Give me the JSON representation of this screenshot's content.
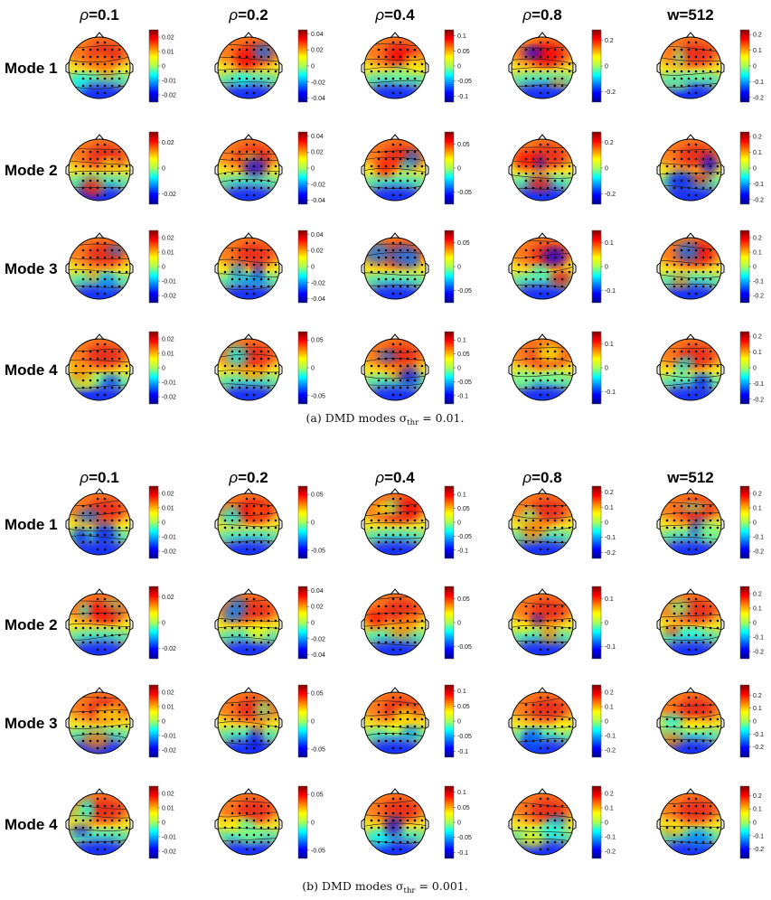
{
  "column_headers": [
    "ρ=0.1",
    "ρ=0.2",
    "ρ=0.4",
    "ρ=0.8",
    "w=512"
  ],
  "row_headers": [
    "Mode 1",
    "Mode 2",
    "Mode 3",
    "Mode 4"
  ],
  "colors": {
    "colormap": "jet",
    "low": "#00008f",
    "mid": "#f2e92a",
    "high": "#800000"
  },
  "chart_data": [
    {
      "type": "heatmap",
      "subfigure_caption": {
        "prefix": "(a) DMD modes σ",
        "subscript": "thr",
        "suffix": " = 0.01."
      },
      "columns": [
        "ρ=0.1",
        "ρ=0.2",
        "ρ=0.4",
        "ρ=0.8",
        "w=512"
      ],
      "rows": [
        "Mode 1",
        "Mode 2",
        "Mode 3",
        "Mode 4"
      ],
      "colorbar_limits": [
        [
          [
            -0.025,
            0.025
          ],
          [
            -0.045,
            0.045
          ],
          [
            -0.12,
            0.12
          ],
          [
            -0.28,
            0.28
          ],
          [
            -0.23,
            0.23
          ]
        ],
        [
          [
            -0.028,
            0.028
          ],
          [
            -0.045,
            0.045
          ],
          [
            -0.075,
            0.075
          ],
          [
            -0.28,
            0.28
          ],
          [
            -0.23,
            0.23
          ]
        ],
        [
          [
            -0.025,
            0.025
          ],
          [
            -0.045,
            0.045
          ],
          [
            -0.075,
            0.075
          ],
          [
            -0.15,
            0.15
          ],
          [
            -0.25,
            0.25
          ]
        ],
        [
          [
            -0.025,
            0.025
          ],
          [
            -0.065,
            0.065
          ],
          [
            -0.13,
            0.13
          ],
          [
            -0.15,
            0.15
          ],
          [
            -0.23,
            0.23
          ]
        ]
      ],
      "colorbar_ticks": [
        [
          [
            "0.02",
            "0.01",
            "0",
            "-0.01",
            "-0.02"
          ],
          [
            "0.04",
            "0.02",
            "0",
            "-0.02",
            "-0.04"
          ],
          [
            "0.1",
            "0.05",
            "0",
            "-0.05",
            "-0.1"
          ],
          [
            "0.2",
            "0",
            "-0.2"
          ],
          [
            "0.2",
            "0.1",
            "0",
            "-0.1",
            "-0.2"
          ]
        ],
        [
          [
            "0.02",
            "0",
            "-0.02"
          ],
          [
            "0.04",
            "0.02",
            "0",
            "-0.02",
            "-0.04"
          ],
          [
            "0.05",
            "0",
            "-0.05"
          ],
          [
            "0.2",
            "0",
            "-0.2"
          ],
          [
            "0.2",
            "0.1",
            "0",
            "-0.1",
            "-0.2"
          ]
        ],
        [
          [
            "0.02",
            "0.01",
            "0",
            "-0.01",
            "-0.02"
          ],
          [
            "0.04",
            "0.02",
            "0",
            "-0.02",
            "-0.04"
          ],
          [
            "0.05",
            "0",
            "-0.05"
          ],
          [
            "0.1",
            "0",
            "-0.1"
          ],
          [
            "0.2",
            "0.1",
            "0",
            "-0.1",
            "-0.2"
          ]
        ],
        [
          [
            "0.02",
            "0.01",
            "0",
            "-0.01",
            "-0.02"
          ],
          [
            "0.05",
            "0",
            "-0.05"
          ],
          [
            "0.1",
            "0.05",
            "0",
            "-0.05",
            "-0.1"
          ],
          [
            "0.1",
            "0",
            "-0.1"
          ],
          [
            "0.2",
            "0.1",
            "0",
            "-0.1",
            "-0.2"
          ]
        ]
      ]
    },
    {
      "type": "heatmap",
      "subfigure_caption": {
        "prefix": "(b) DMD modes σ",
        "subscript": "thr",
        "suffix": " = 0.001."
      },
      "columns": [
        "ρ=0.1",
        "ρ=0.2",
        "ρ=0.4",
        "ρ=0.8",
        "w=512"
      ],
      "rows": [
        "Mode 1",
        "Mode 2",
        "Mode 3",
        "Mode 4"
      ],
      "colorbar_limits": [
        [
          [
            -0.025,
            0.025
          ],
          [
            -0.065,
            0.065
          ],
          [
            -0.13,
            0.13
          ],
          [
            -0.24,
            0.24
          ],
          [
            -0.25,
            0.25
          ]
        ],
        [
          [
            -0.028,
            0.028
          ],
          [
            -0.045,
            0.045
          ],
          [
            -0.075,
            0.075
          ],
          [
            -0.15,
            0.15
          ],
          [
            -0.25,
            0.25
          ]
        ],
        [
          [
            -0.025,
            0.025
          ],
          [
            -0.065,
            0.065
          ],
          [
            -0.12,
            0.12
          ],
          [
            -0.25,
            0.25
          ],
          [
            -0.28,
            0.28
          ]
        ],
        [
          [
            -0.025,
            0.025
          ],
          [
            -0.065,
            0.065
          ],
          [
            -0.12,
            0.12
          ],
          [
            -0.25,
            0.25
          ],
          [
            -0.27,
            0.27
          ]
        ]
      ],
      "colorbar_ticks": [
        [
          [
            "0.02",
            "0.01",
            "0",
            "-0.01",
            "-0.02"
          ],
          [
            "0.05",
            "0",
            "-0.05"
          ],
          [
            "0.1",
            "0.05",
            "0",
            "-0.05",
            "-0.1"
          ],
          [
            "0.2",
            "0.1",
            "0",
            "-0.1",
            "-0.2"
          ],
          [
            "0.2",
            "0.1",
            "0",
            "-0.1",
            "-0.2"
          ]
        ],
        [
          [
            "0.02",
            "0",
            "-0.02"
          ],
          [
            "0.04",
            "0.02",
            "0",
            "-0.02",
            "-0.04"
          ],
          [
            "0.05",
            "0",
            "-0.05"
          ],
          [
            "0.1",
            "0",
            "-0.1"
          ],
          [
            "0.2",
            "0.1",
            "0",
            "-0.1",
            "-0.2"
          ]
        ],
        [
          [
            "0.02",
            "0.01",
            "0",
            "-0.01",
            "-0.02"
          ],
          [
            "0.05",
            "0",
            "-0.05"
          ],
          [
            "0.1",
            "0.05",
            "0",
            "-0.05",
            "-0.1"
          ],
          [
            "0.2",
            "0.1",
            "0",
            "-0.1",
            "-0.2"
          ],
          [
            "0.2",
            "0.1",
            "0",
            "-0.1",
            "-0.2"
          ]
        ],
        [
          [
            "0.02",
            "0.01",
            "0",
            "-0.01",
            "-0.02"
          ],
          [
            "0.05",
            "0",
            "-0.05"
          ],
          [
            "0.1",
            "0.05",
            "0",
            "-0.05",
            "-0.1"
          ],
          [
            "0.2",
            "0.1",
            "0",
            "-0.1",
            "-0.2"
          ],
          [
            "0.2",
            "0.1",
            "0",
            "-0.1",
            "-0.2"
          ]
        ]
      ]
    }
  ]
}
